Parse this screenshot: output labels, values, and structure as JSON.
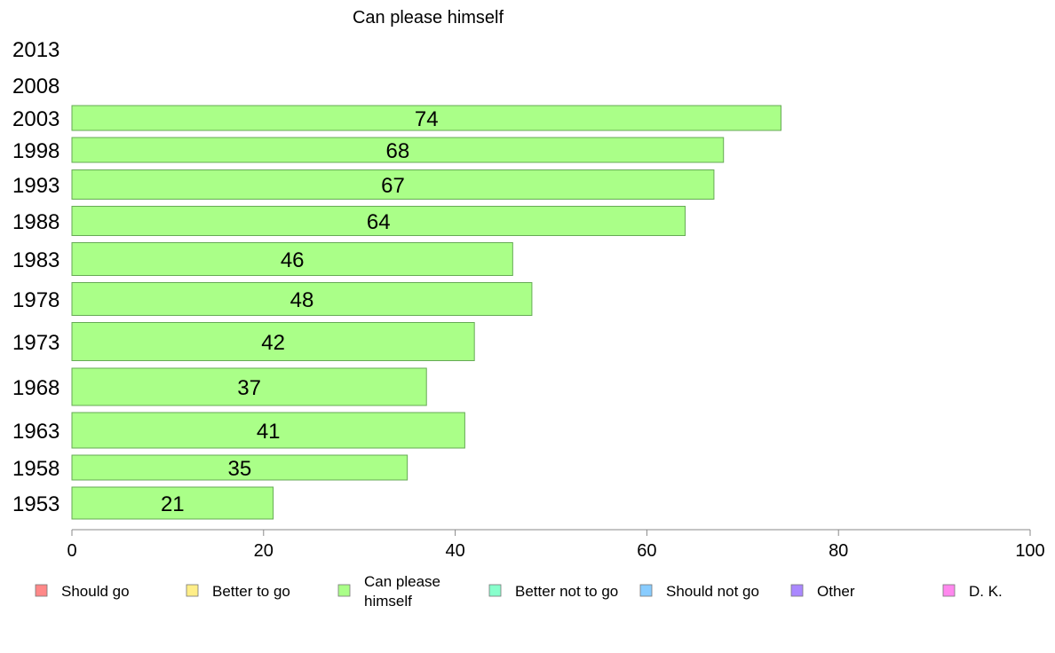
{
  "chart_data": {
    "type": "bar",
    "orientation": "horizontal",
    "title": "Can please himself",
    "categories": [
      "2013",
      "2008",
      "2003",
      "1998",
      "1993",
      "1988",
      "1983",
      "1978",
      "1973",
      "1968",
      "1963",
      "1958",
      "1953"
    ],
    "values": [
      null,
      null,
      74,
      68,
      67,
      64,
      46,
      48,
      42,
      37,
      41,
      35,
      21
    ],
    "series_name": "Can please himself",
    "bar_color": "#aaff88",
    "bar_stroke": "#66aa55",
    "xlim": [
      0,
      100
    ],
    "xticks": [
      "0",
      "20",
      "40",
      "60",
      "80",
      "100"
    ],
    "grid": false,
    "legend_position": "bottom",
    "legend": [
      {
        "label": "Should go",
        "color": "#ff8888"
      },
      {
        "label": "Better to go",
        "color": "#ffee88"
      },
      {
        "label": "Can please himself",
        "color": "#aaff88"
      },
      {
        "label": "Better not to go",
        "color": "#88ffcc"
      },
      {
        "label": "Should not go",
        "color": "#88ccff"
      },
      {
        "label": "Other",
        "color": "#aa88ff"
      },
      {
        "label": "D. K.",
        "color": "#ff88ee"
      }
    ]
  }
}
